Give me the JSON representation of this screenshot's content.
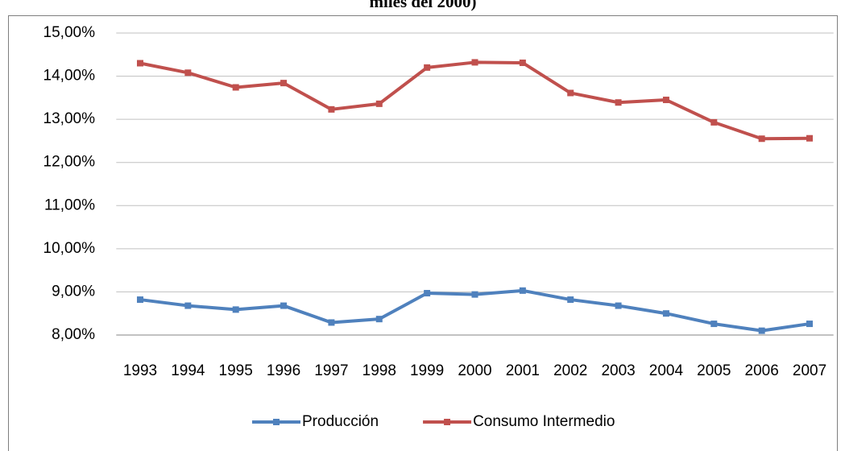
{
  "chart_data": {
    "type": "line",
    "title": "miles del 2000)",
    "categories": [
      "1993",
      "1994",
      "1995",
      "1996",
      "1997",
      "1998",
      "1999",
      "2000",
      "2001",
      "2002",
      "2003",
      "2004",
      "2005",
      "2006",
      "2007"
    ],
    "series": [
      {
        "name": "Producción",
        "color": "#4f81bd",
        "values": [
          8.82,
          8.68,
          8.59,
          8.68,
          8.29,
          8.37,
          8.97,
          8.94,
          9.03,
          8.82,
          8.68,
          8.5,
          8.26,
          8.1,
          8.26
        ]
      },
      {
        "name": "Consumo Intermedio",
        "color": "#c0504d",
        "values": [
          14.3,
          14.08,
          13.74,
          13.84,
          13.23,
          13.36,
          14.2,
          14.32,
          14.31,
          13.61,
          13.39,
          13.45,
          12.93,
          12.55,
          12.56
        ]
      }
    ],
    "ylim": [
      8,
      15
    ],
    "yticks": [
      {
        "value": 8,
        "label": "8,00%"
      },
      {
        "value": 9,
        "label": "9,00%"
      },
      {
        "value": 10,
        "label": "10,00%"
      },
      {
        "value": 11,
        "label": "11,00%"
      },
      {
        "value": 12,
        "label": "12,00%"
      },
      {
        "value": 13,
        "label": "13,00%"
      },
      {
        "value": 14,
        "label": "14,00%"
      },
      {
        "value": 15,
        "label": "15,00%"
      }
    ],
    "grid": true,
    "legend": "bottom"
  }
}
